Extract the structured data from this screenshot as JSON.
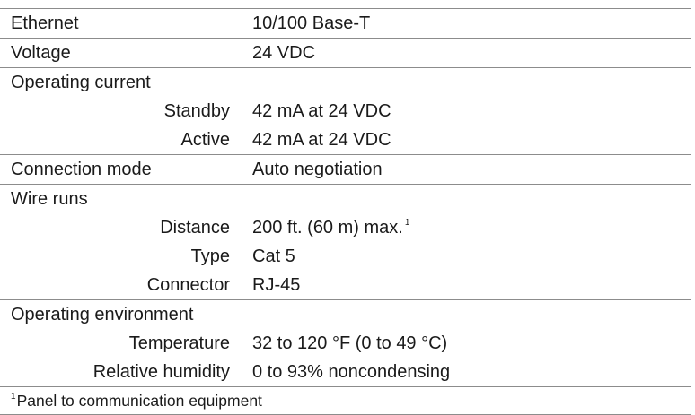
{
  "ethernet": {
    "label": "Ethernet",
    "value": "10/100 Base-T"
  },
  "voltage": {
    "label": "Voltage",
    "value": "24 VDC"
  },
  "operating_current": {
    "label": "Operating current",
    "standby": {
      "label": "Standby",
      "value": "42 mA at 24 VDC"
    },
    "active": {
      "label": "Active",
      "value": "42 mA at 24 VDC"
    }
  },
  "connection_mode": {
    "label": "Connection mode",
    "value": "Auto negotiation"
  },
  "wire_runs": {
    "label": "Wire runs",
    "distance": {
      "label": "Distance",
      "value": "200 ft. (60 m) max.",
      "footnote_mark": "1"
    },
    "type": {
      "label": "Type",
      "value": "Cat 5"
    },
    "connector": {
      "label": "Connector",
      "value": "RJ-45"
    }
  },
  "operating_environment": {
    "label": "Operating environment",
    "temperature": {
      "label": "Temperature",
      "value": "32 to 120 °F (0 to 49 °C)"
    },
    "relative_humidity": {
      "label": "Relative humidity",
      "value": "0 to 93% noncondensing"
    }
  },
  "footnote": {
    "mark": "1",
    "text": "Panel to communication equipment"
  }
}
